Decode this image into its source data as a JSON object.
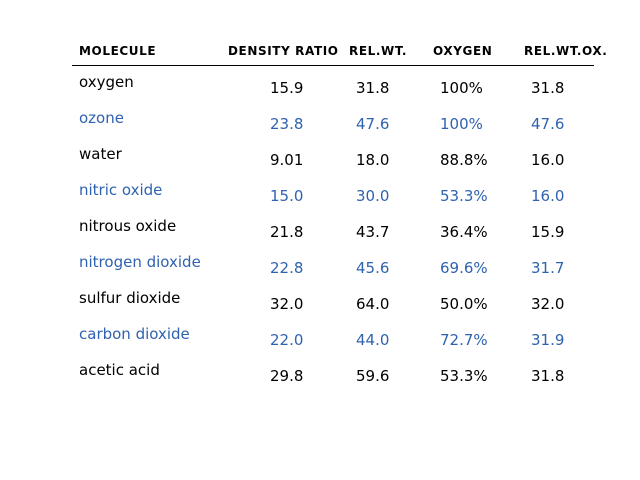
{
  "headers": {
    "molecule": "MOLECULE",
    "density_ratio": "DENSITY RATIO",
    "rel_wt": "REL.WT.",
    "oxygen": "OXYGEN",
    "rel_wt_ox": "REL.WT.OX."
  },
  "colors": {
    "text": "#000000",
    "alt_row": "#2f62b0"
  },
  "rows": [
    {
      "molecule": "oxygen",
      "density_ratio": "15.9",
      "rel_wt": "31.8",
      "oxygen": "100%",
      "rel_wt_ox": "31.8"
    },
    {
      "molecule": "ozone",
      "density_ratio": "23.8",
      "rel_wt": "47.6",
      "oxygen": "100%",
      "rel_wt_ox": "47.6"
    },
    {
      "molecule": "water",
      "density_ratio": "9.01",
      "rel_wt": "18.0",
      "oxygen": "88.8%",
      "rel_wt_ox": "16.0"
    },
    {
      "molecule": "nitric oxide",
      "density_ratio": "15.0",
      "rel_wt": "30.0",
      "oxygen": "53.3%",
      "rel_wt_ox": "16.0"
    },
    {
      "molecule": "nitrous oxide",
      "density_ratio": "21.8",
      "rel_wt": "43.7",
      "oxygen": "36.4%",
      "rel_wt_ox": "15.9"
    },
    {
      "molecule": "nitrogen dioxide",
      "density_ratio": "22.8",
      "rel_wt": "45.6",
      "oxygen": "69.6%",
      "rel_wt_ox": "31.7"
    },
    {
      "molecule": "sulfur dioxide",
      "density_ratio": "32.0",
      "rel_wt": "64.0",
      "oxygen": "50.0%",
      "rel_wt_ox": "32.0"
    },
    {
      "molecule": "carbon dioxide",
      "density_ratio": "22.0",
      "rel_wt": "44.0",
      "oxygen": "72.7%",
      "rel_wt_ox": "31.9"
    },
    {
      "molecule": "acetic acid",
      "density_ratio": "29.8",
      "rel_wt": "59.6",
      "oxygen": "53.3%",
      "rel_wt_ox": "31.8"
    }
  ]
}
